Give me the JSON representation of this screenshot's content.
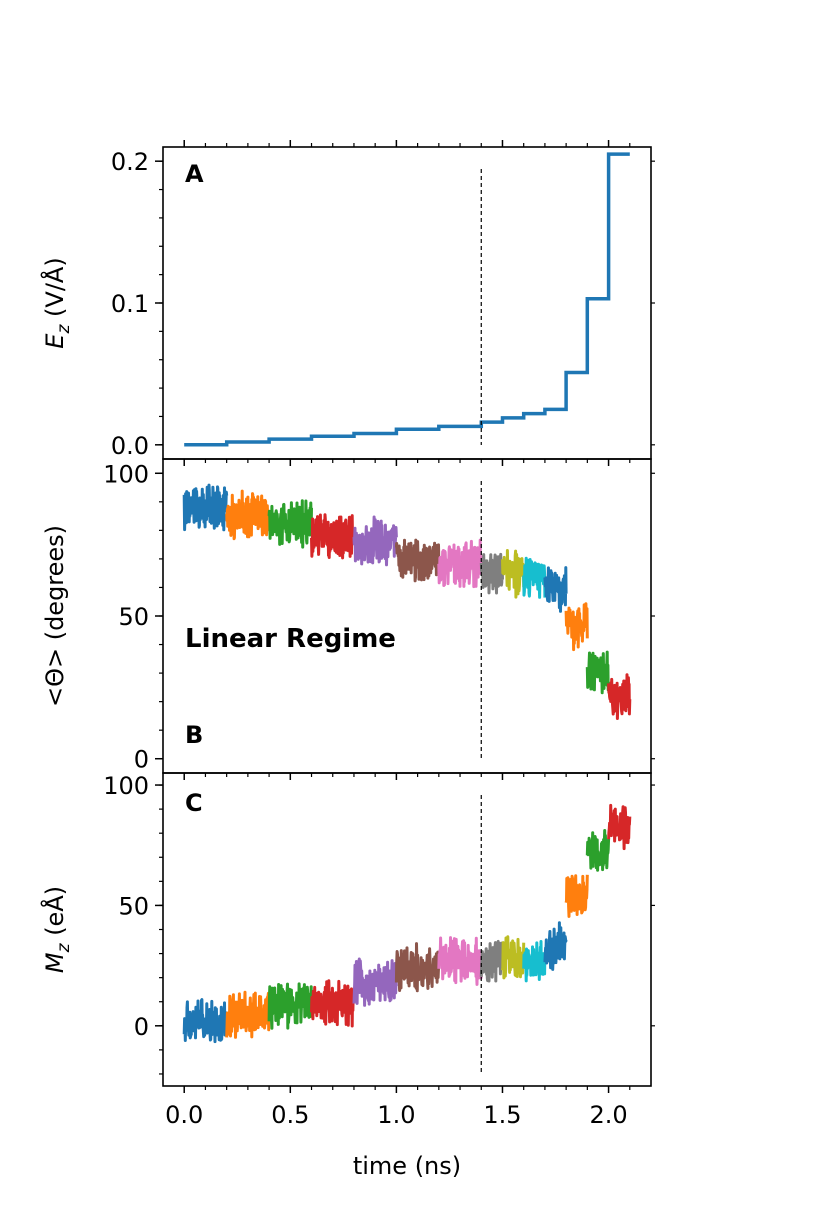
{
  "chart_data": [
    {
      "type": "line",
      "panel_label": "A",
      "ylabel_symbol": "E",
      "ylabel_sub": "z",
      "ylabel_unit": " (V/Å)",
      "xlim": [
        -0.1,
        2.2
      ],
      "ylim": [
        -0.01,
        0.21
      ],
      "yticks": [
        0.0,
        0.1,
        0.2
      ],
      "ytick_labels": [
        "0.0",
        "0.1",
        "0.2"
      ],
      "yminor": 0.02,
      "marker_x": 1.4,
      "color": "#1f77b4",
      "series": [
        {
          "name": "E_z",
          "x": [
            0.0,
            0.2,
            0.4,
            0.6,
            0.8,
            1.0,
            1.2,
            1.4,
            1.5,
            1.6,
            1.7,
            1.8,
            1.9,
            2.0
          ],
          "x_end": 2.1,
          "values": [
            0.0,
            0.002,
            0.004,
            0.006,
            0.008,
            0.011,
            0.013,
            0.016,
            0.019,
            0.022,
            0.025,
            0.051,
            0.103,
            0.205
          ]
        }
      ]
    },
    {
      "type": "line",
      "panel_label": "B",
      "ylabel": "<Θ> (degrees)",
      "annotation": "Linear Regime",
      "xlim": [
        -0.1,
        2.2
      ],
      "ylim": [
        -5,
        105
      ],
      "yticks": [
        0,
        50,
        100
      ],
      "ytick_labels": [
        "0",
        "50",
        "100"
      ],
      "yminor": 10,
      "marker_x": 1.4,
      "noise": 6,
      "series": [
        {
          "name": "0.0-0.2 ns",
          "x": [
            0.0,
            0.2
          ],
          "mean": 88,
          "color": "#1f77b4"
        },
        {
          "name": "0.2-0.4 ns",
          "x": [
            0.2,
            0.4
          ],
          "mean": 85,
          "color": "#ff7f0e"
        },
        {
          "name": "0.4-0.6 ns",
          "x": [
            0.4,
            0.6
          ],
          "mean": 82,
          "color": "#2ca02c"
        },
        {
          "name": "0.6-0.8 ns",
          "x": [
            0.6,
            0.8
          ],
          "mean": 78,
          "color": "#d62728"
        },
        {
          "name": "0.8-1.0 ns",
          "x": [
            0.8,
            1.0
          ],
          "mean": 76,
          "color": "#9467bd"
        },
        {
          "name": "1.0-1.2 ns",
          "x": [
            1.0,
            1.2
          ],
          "mean": 70,
          "color": "#8c564b"
        },
        {
          "name": "1.2-1.4 ns",
          "x": [
            1.2,
            1.4
          ],
          "mean": 68,
          "color": "#e377c2"
        },
        {
          "name": "1.4-1.5 ns",
          "x": [
            1.4,
            1.5
          ],
          "mean": 66,
          "color": "#7f7f7f"
        },
        {
          "name": "1.5-1.6 ns",
          "x": [
            1.5,
            1.6
          ],
          "mean": 65,
          "color": "#bcbd22"
        },
        {
          "name": "1.6-1.7 ns",
          "x": [
            1.6,
            1.7
          ],
          "mean": 63,
          "color": "#17becf"
        },
        {
          "name": "1.7-1.8 ns",
          "x": [
            1.7,
            1.8
          ],
          "mean": 60,
          "color": "#1f77b4"
        },
        {
          "name": "1.8-1.9 ns",
          "x": [
            1.8,
            1.9
          ],
          "mean": 46,
          "color": "#ff7f0e"
        },
        {
          "name": "1.9-2.0 ns",
          "x": [
            1.9,
            2.0
          ],
          "mean": 30,
          "color": "#2ca02c"
        },
        {
          "name": "2.0-2.1 ns",
          "x": [
            2.0,
            2.1
          ],
          "mean": 22,
          "color": "#d62728"
        }
      ]
    },
    {
      "type": "line",
      "panel_label": "C",
      "ylabel_symbol": "M",
      "ylabel_sub": "z",
      "ylabel_unit": " (eÅ)",
      "xlabel": "time (ns)",
      "xlim": [
        -0.1,
        2.2
      ],
      "ylim": [
        -25,
        105
      ],
      "yticks": [
        0,
        50,
        100
      ],
      "ytick_labels": [
        "0",
        "50",
        "100"
      ],
      "yminor": 10,
      "xticks": [
        0.0,
        0.5,
        1.0,
        1.5,
        2.0
      ],
      "xtick_labels": [
        "0.0",
        "0.5",
        "1.0",
        "1.5",
        "2.0"
      ],
      "xminor": 0.1,
      "marker_x": 1.4,
      "noise": 7,
      "series": [
        {
          "name": "0.0-0.2 ns",
          "x": [
            0.0,
            0.2
          ],
          "mean": 2,
          "color": "#1f77b4"
        },
        {
          "name": "0.2-0.4 ns",
          "x": [
            0.2,
            0.4
          ],
          "mean": 5,
          "color": "#ff7f0e"
        },
        {
          "name": "0.4-0.6 ns",
          "x": [
            0.4,
            0.6
          ],
          "mean": 9,
          "color": "#2ca02c"
        },
        {
          "name": "0.6-0.8 ns",
          "x": [
            0.6,
            0.8
          ],
          "mean": 10,
          "color": "#d62728"
        },
        {
          "name": "0.8-1.0 ns",
          "x": [
            0.8,
            1.0
          ],
          "mean": 18,
          "color": "#9467bd"
        },
        {
          "name": "1.0-1.2 ns",
          "x": [
            1.0,
            1.2
          ],
          "mean": 24,
          "color": "#8c564b"
        },
        {
          "name": "1.2-1.4 ns",
          "x": [
            1.2,
            1.4
          ],
          "mean": 27,
          "color": "#e377c2"
        },
        {
          "name": "1.4-1.5 ns",
          "x": [
            1.4,
            1.5
          ],
          "mean": 28,
          "color": "#7f7f7f"
        },
        {
          "name": "1.5-1.6 ns",
          "x": [
            1.5,
            1.6
          ],
          "mean": 28,
          "color": "#bcbd22"
        },
        {
          "name": "1.6-1.7 ns",
          "x": [
            1.6,
            1.7
          ],
          "mean": 26,
          "color": "#17becf"
        },
        {
          "name": "1.7-1.8 ns",
          "x": [
            1.7,
            1.8
          ],
          "mean": 33,
          "color": "#1f77b4"
        },
        {
          "name": "1.8-1.9 ns",
          "x": [
            1.8,
            1.9
          ],
          "mean": 55,
          "color": "#ff7f0e"
        },
        {
          "name": "1.9-2.0 ns",
          "x": [
            1.9,
            2.0
          ],
          "mean": 72,
          "color": "#2ca02c"
        },
        {
          "name": "2.0-2.1 ns",
          "x": [
            2.0,
            2.1
          ],
          "mean": 83,
          "color": "#d62728"
        }
      ]
    }
  ]
}
